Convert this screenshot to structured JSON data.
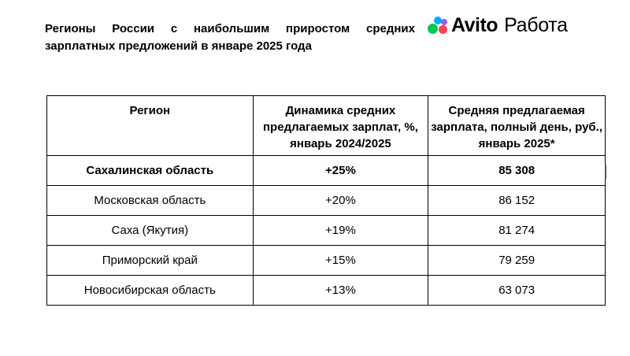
{
  "title": "Регионы России с наибольшим приростом средних зарплатных предложений в январе 2025 года",
  "logo": {
    "brand": "Avito",
    "product": "Работа",
    "dot_colors": {
      "green": "#00c853",
      "blue": "#00aaff",
      "purple": "#965eeb",
      "red": "#ff4053"
    }
  },
  "table": {
    "headers": [
      "Регион",
      "Динамика средних предлагаемых зарплат, %, январь 2024/2025",
      "Средняя предлагаемая зарплата, полный день, руб., январь 2025*"
    ],
    "rows": [
      {
        "region": "Сахалинская область",
        "dynamics": "+25%",
        "salary": "85 308",
        "bold": true
      },
      {
        "region": "Московская область",
        "dynamics": "+20%",
        "salary": "86 152",
        "bold": false
      },
      {
        "region": "Саха (Якутия)",
        "dynamics": "+19%",
        "salary": "81 274",
        "bold": false
      },
      {
        "region": "Приморский край",
        "dynamics": "+15%",
        "salary": "79 259",
        "bold": false
      },
      {
        "region": "Новосибирская область",
        "dynamics": "+13%",
        "salary": "63 073",
        "bold": false
      }
    ]
  }
}
